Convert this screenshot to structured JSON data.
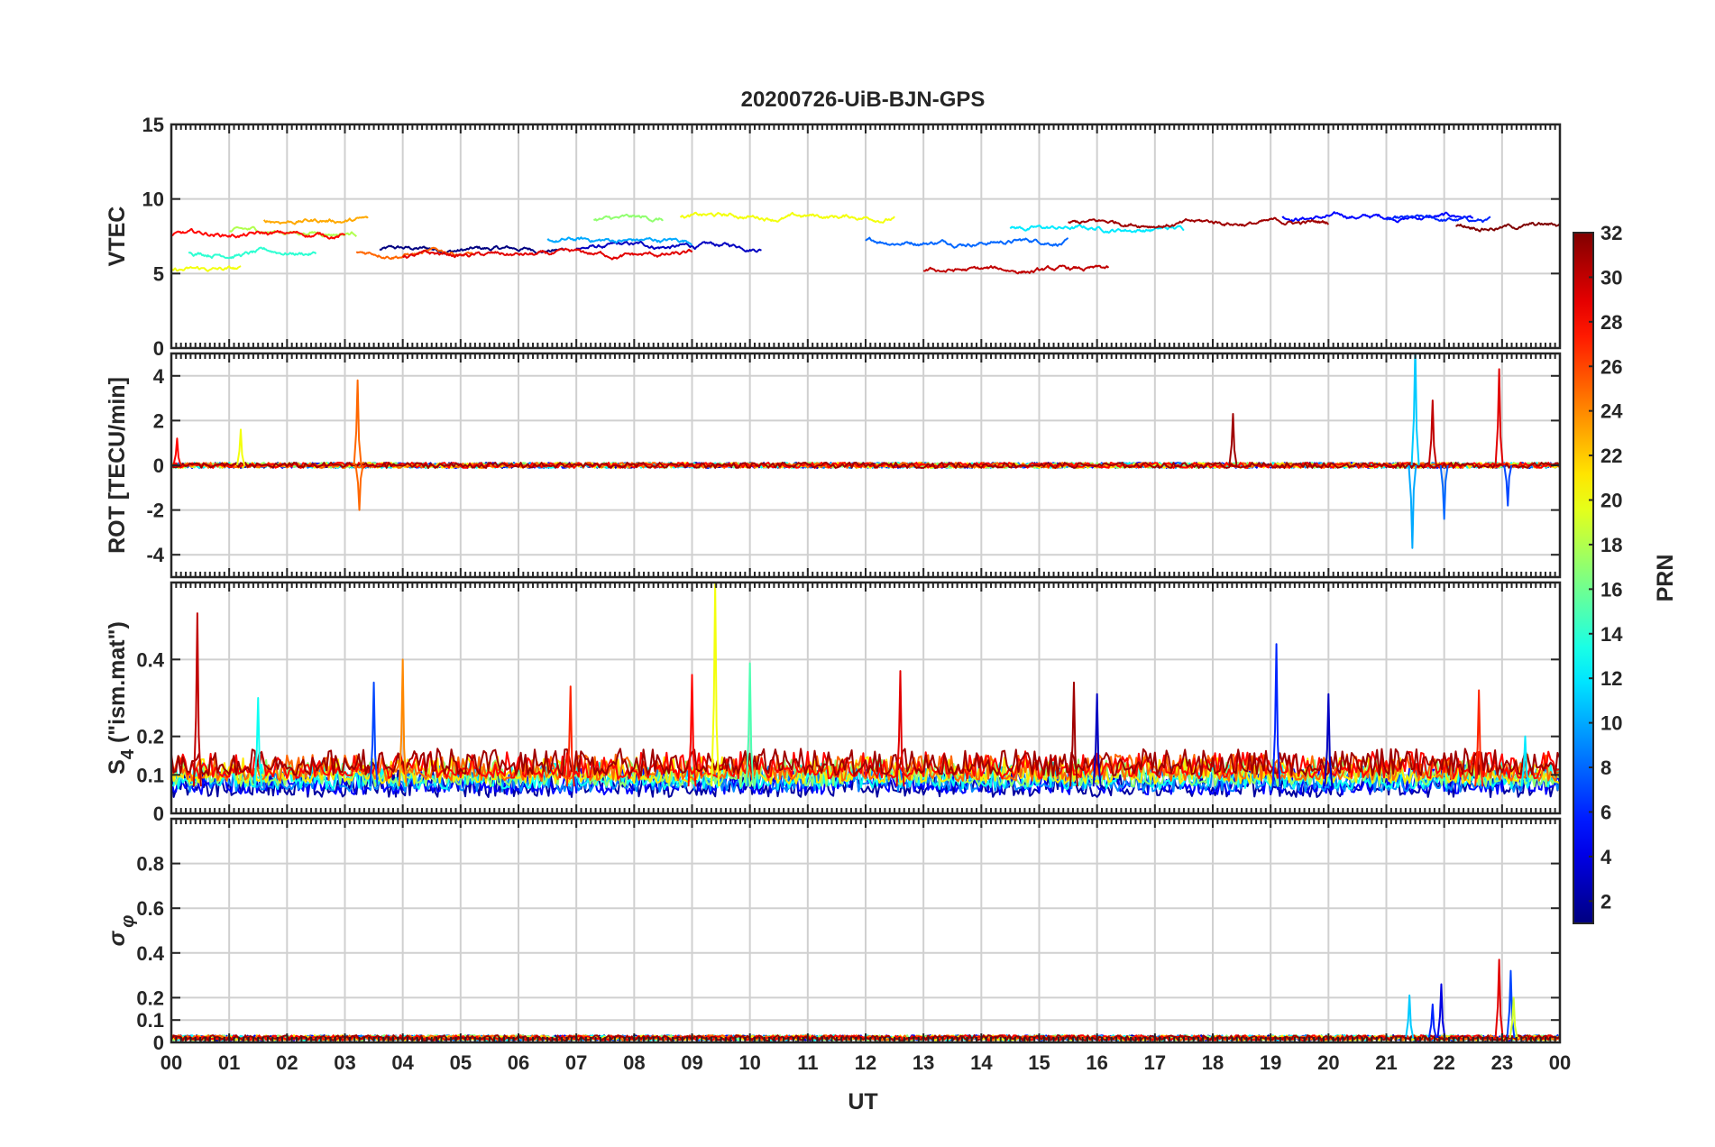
{
  "chart_data": [
    {
      "type": "line",
      "id": "vtec",
      "title": "20200726-UiB-BJN-GPS",
      "ylabel": "VTEC",
      "ylim": [
        0,
        15
      ],
      "yticks": [
        0,
        5,
        10,
        15
      ],
      "ytick_labels": [
        "0",
        "5",
        "10",
        "15"
      ],
      "xlim": [
        0,
        24
      ],
      "series_note": "one trace per satellite PRN, colored by PRN",
      "baseline": 6.6,
      "noise": 0.35,
      "series": [
        {
          "prn": 1,
          "start": 3.6,
          "end": 6.8,
          "base": 6.6
        },
        {
          "prn": 3,
          "start": 7.0,
          "end": 10.2,
          "base": 6.8
        },
        {
          "prn": 5,
          "start": 19.2,
          "end": 22.5,
          "base": 8.8
        },
        {
          "prn": 6,
          "start": 21.0,
          "end": 22.8,
          "base": 8.5
        },
        {
          "prn": 8,
          "start": 12.0,
          "end": 15.5,
          "base": 7.2
        },
        {
          "prn": 10,
          "start": 6.5,
          "end": 9.0,
          "base": 7.2
        },
        {
          "prn": 12,
          "start": 14.5,
          "end": 17.5,
          "base": 8.0
        },
        {
          "prn": 14,
          "start": 0.3,
          "end": 2.5,
          "base": 6.4
        },
        {
          "prn": 17,
          "start": 7.3,
          "end": 8.5,
          "base": 8.6
        },
        {
          "prn": 18,
          "start": 1.0,
          "end": 3.2,
          "base": 7.8
        },
        {
          "prn": 20,
          "start": 8.8,
          "end": 12.5,
          "base": 8.8
        },
        {
          "prn": 20,
          "start": 0.0,
          "end": 1.2,
          "base": 5.2
        },
        {
          "prn": 23,
          "start": 1.6,
          "end": 3.4,
          "base": 8.6
        },
        {
          "prn": 25,
          "start": 3.2,
          "end": 5.2,
          "base": 6.4
        },
        {
          "prn": 28,
          "start": 0.0,
          "end": 3.0,
          "base": 7.6
        },
        {
          "prn": 29,
          "start": 4.0,
          "end": 9.0,
          "base": 6.2
        },
        {
          "prn": 30,
          "start": 13.0,
          "end": 16.2,
          "base": 5.2
        },
        {
          "prn": 31,
          "start": 15.5,
          "end": 20.0,
          "base": 8.4
        },
        {
          "prn": 32,
          "start": 22.2,
          "end": 24.0,
          "base": 8.2
        }
      ]
    },
    {
      "type": "line",
      "id": "rot",
      "ylabel": "ROT [TECU/min]",
      "ylim": [
        -5,
        5
      ],
      "yticks": [
        -4,
        -2,
        0,
        2,
        4
      ],
      "ytick_labels": [
        "-4",
        "-2",
        "0",
        "2",
        "4"
      ],
      "xlim": [
        0,
        24
      ],
      "baseline": 0,
      "noise": 0.12,
      "spikes": [
        {
          "t": 0.1,
          "v": 1.2,
          "prn": 28
        },
        {
          "t": 1.2,
          "v": 1.6,
          "prn": 20
        },
        {
          "t": 3.22,
          "v": 3.8,
          "prn": 25
        },
        {
          "t": 3.25,
          "v": -2.0,
          "prn": 25
        },
        {
          "t": 18.35,
          "v": 2.3,
          "prn": 31
        },
        {
          "t": 21.5,
          "v": 5.4,
          "prn": 11
        },
        {
          "t": 21.45,
          "v": -3.7,
          "prn": 10
        },
        {
          "t": 21.8,
          "v": 2.9,
          "prn": 30
        },
        {
          "t": 22.0,
          "v": -2.4,
          "prn": 8
        },
        {
          "t": 22.95,
          "v": 4.3,
          "prn": 29
        },
        {
          "t": 23.1,
          "v": -1.8,
          "prn": 7
        }
      ]
    },
    {
      "type": "line",
      "id": "s4",
      "ylabel": "S4 (\"ism.mat\")",
      "ylabel_main": "S",
      "ylabel_sub": "4",
      "ylabel_rest": " (\"ism.mat\")",
      "ylim": [
        0,
        0.6
      ],
      "yticks": [
        0,
        0.1,
        0.2,
        0.4
      ],
      "ytick_labels": [
        "0",
        "0.1",
        "0.2",
        "0.4"
      ],
      "xlim": [
        0,
        24
      ],
      "baseline": 0.07,
      "noise": 0.04,
      "spikes": [
        {
          "t": 0.45,
          "v": 0.52,
          "prn": 30
        },
        {
          "t": 1.5,
          "v": 0.3,
          "prn": 13
        },
        {
          "t": 3.5,
          "v": 0.34,
          "prn": 7
        },
        {
          "t": 4.0,
          "v": 0.4,
          "prn": 24
        },
        {
          "t": 6.9,
          "v": 0.33,
          "prn": 27
        },
        {
          "t": 9.4,
          "v": 0.6,
          "prn": 20
        },
        {
          "t": 9.0,
          "v": 0.36,
          "prn": 28
        },
        {
          "t": 10.0,
          "v": 0.39,
          "prn": 15
        },
        {
          "t": 12.6,
          "v": 0.37,
          "prn": 29
        },
        {
          "t": 15.6,
          "v": 0.34,
          "prn": 31
        },
        {
          "t": 16.0,
          "v": 0.31,
          "prn": 3
        },
        {
          "t": 19.1,
          "v": 0.44,
          "prn": 6
        },
        {
          "t": 20.0,
          "v": 0.31,
          "prn": 3
        },
        {
          "t": 22.6,
          "v": 0.32,
          "prn": 27
        },
        {
          "t": 23.4,
          "v": 0.2,
          "prn": 12
        }
      ]
    },
    {
      "type": "line",
      "id": "sigma_phi",
      "ylabel": "σ φ",
      "ylabel_main": "σ",
      "ylabel_sub": "φ",
      "ylim": [
        0,
        1
      ],
      "yticks": [
        0,
        0.1,
        0.2,
        0.4,
        0.6,
        0.8
      ],
      "ytick_labels": [
        "0",
        "0.1",
        "0.2",
        "0.4",
        "0.6",
        "0.8"
      ],
      "xlim": [
        0,
        24
      ],
      "xlabel": "UT",
      "xtick_labels": [
        "00",
        "01",
        "02",
        "03",
        "04",
        "05",
        "06",
        "07",
        "08",
        "09",
        "10",
        "11",
        "12",
        "13",
        "14",
        "15",
        "16",
        "17",
        "18",
        "19",
        "20",
        "21",
        "22",
        "23",
        "00"
      ],
      "baseline": 0.02,
      "noise": 0.012,
      "spikes": [
        {
          "t": 21.4,
          "v": 0.21,
          "prn": 11
        },
        {
          "t": 21.8,
          "v": 0.17,
          "prn": 6
        },
        {
          "t": 21.95,
          "v": 0.26,
          "prn": 4
        },
        {
          "t": 22.95,
          "v": 0.37,
          "prn": 29
        },
        {
          "t": 23.15,
          "v": 0.32,
          "prn": 7
        },
        {
          "t": 23.2,
          "v": 0.2,
          "prn": 19
        }
      ]
    }
  ],
  "colorbar": {
    "label": "PRN",
    "min": 1,
    "max": 32,
    "ticks": [
      2,
      4,
      6,
      8,
      10,
      12,
      14,
      16,
      18,
      20,
      22,
      24,
      26,
      28,
      30,
      32
    ],
    "tick_labels": [
      "2",
      "4",
      "6",
      "8",
      "10",
      "12",
      "14",
      "16",
      "18",
      "20",
      "22",
      "24",
      "26",
      "28",
      "30",
      "32"
    ],
    "colormap": "jet"
  }
}
